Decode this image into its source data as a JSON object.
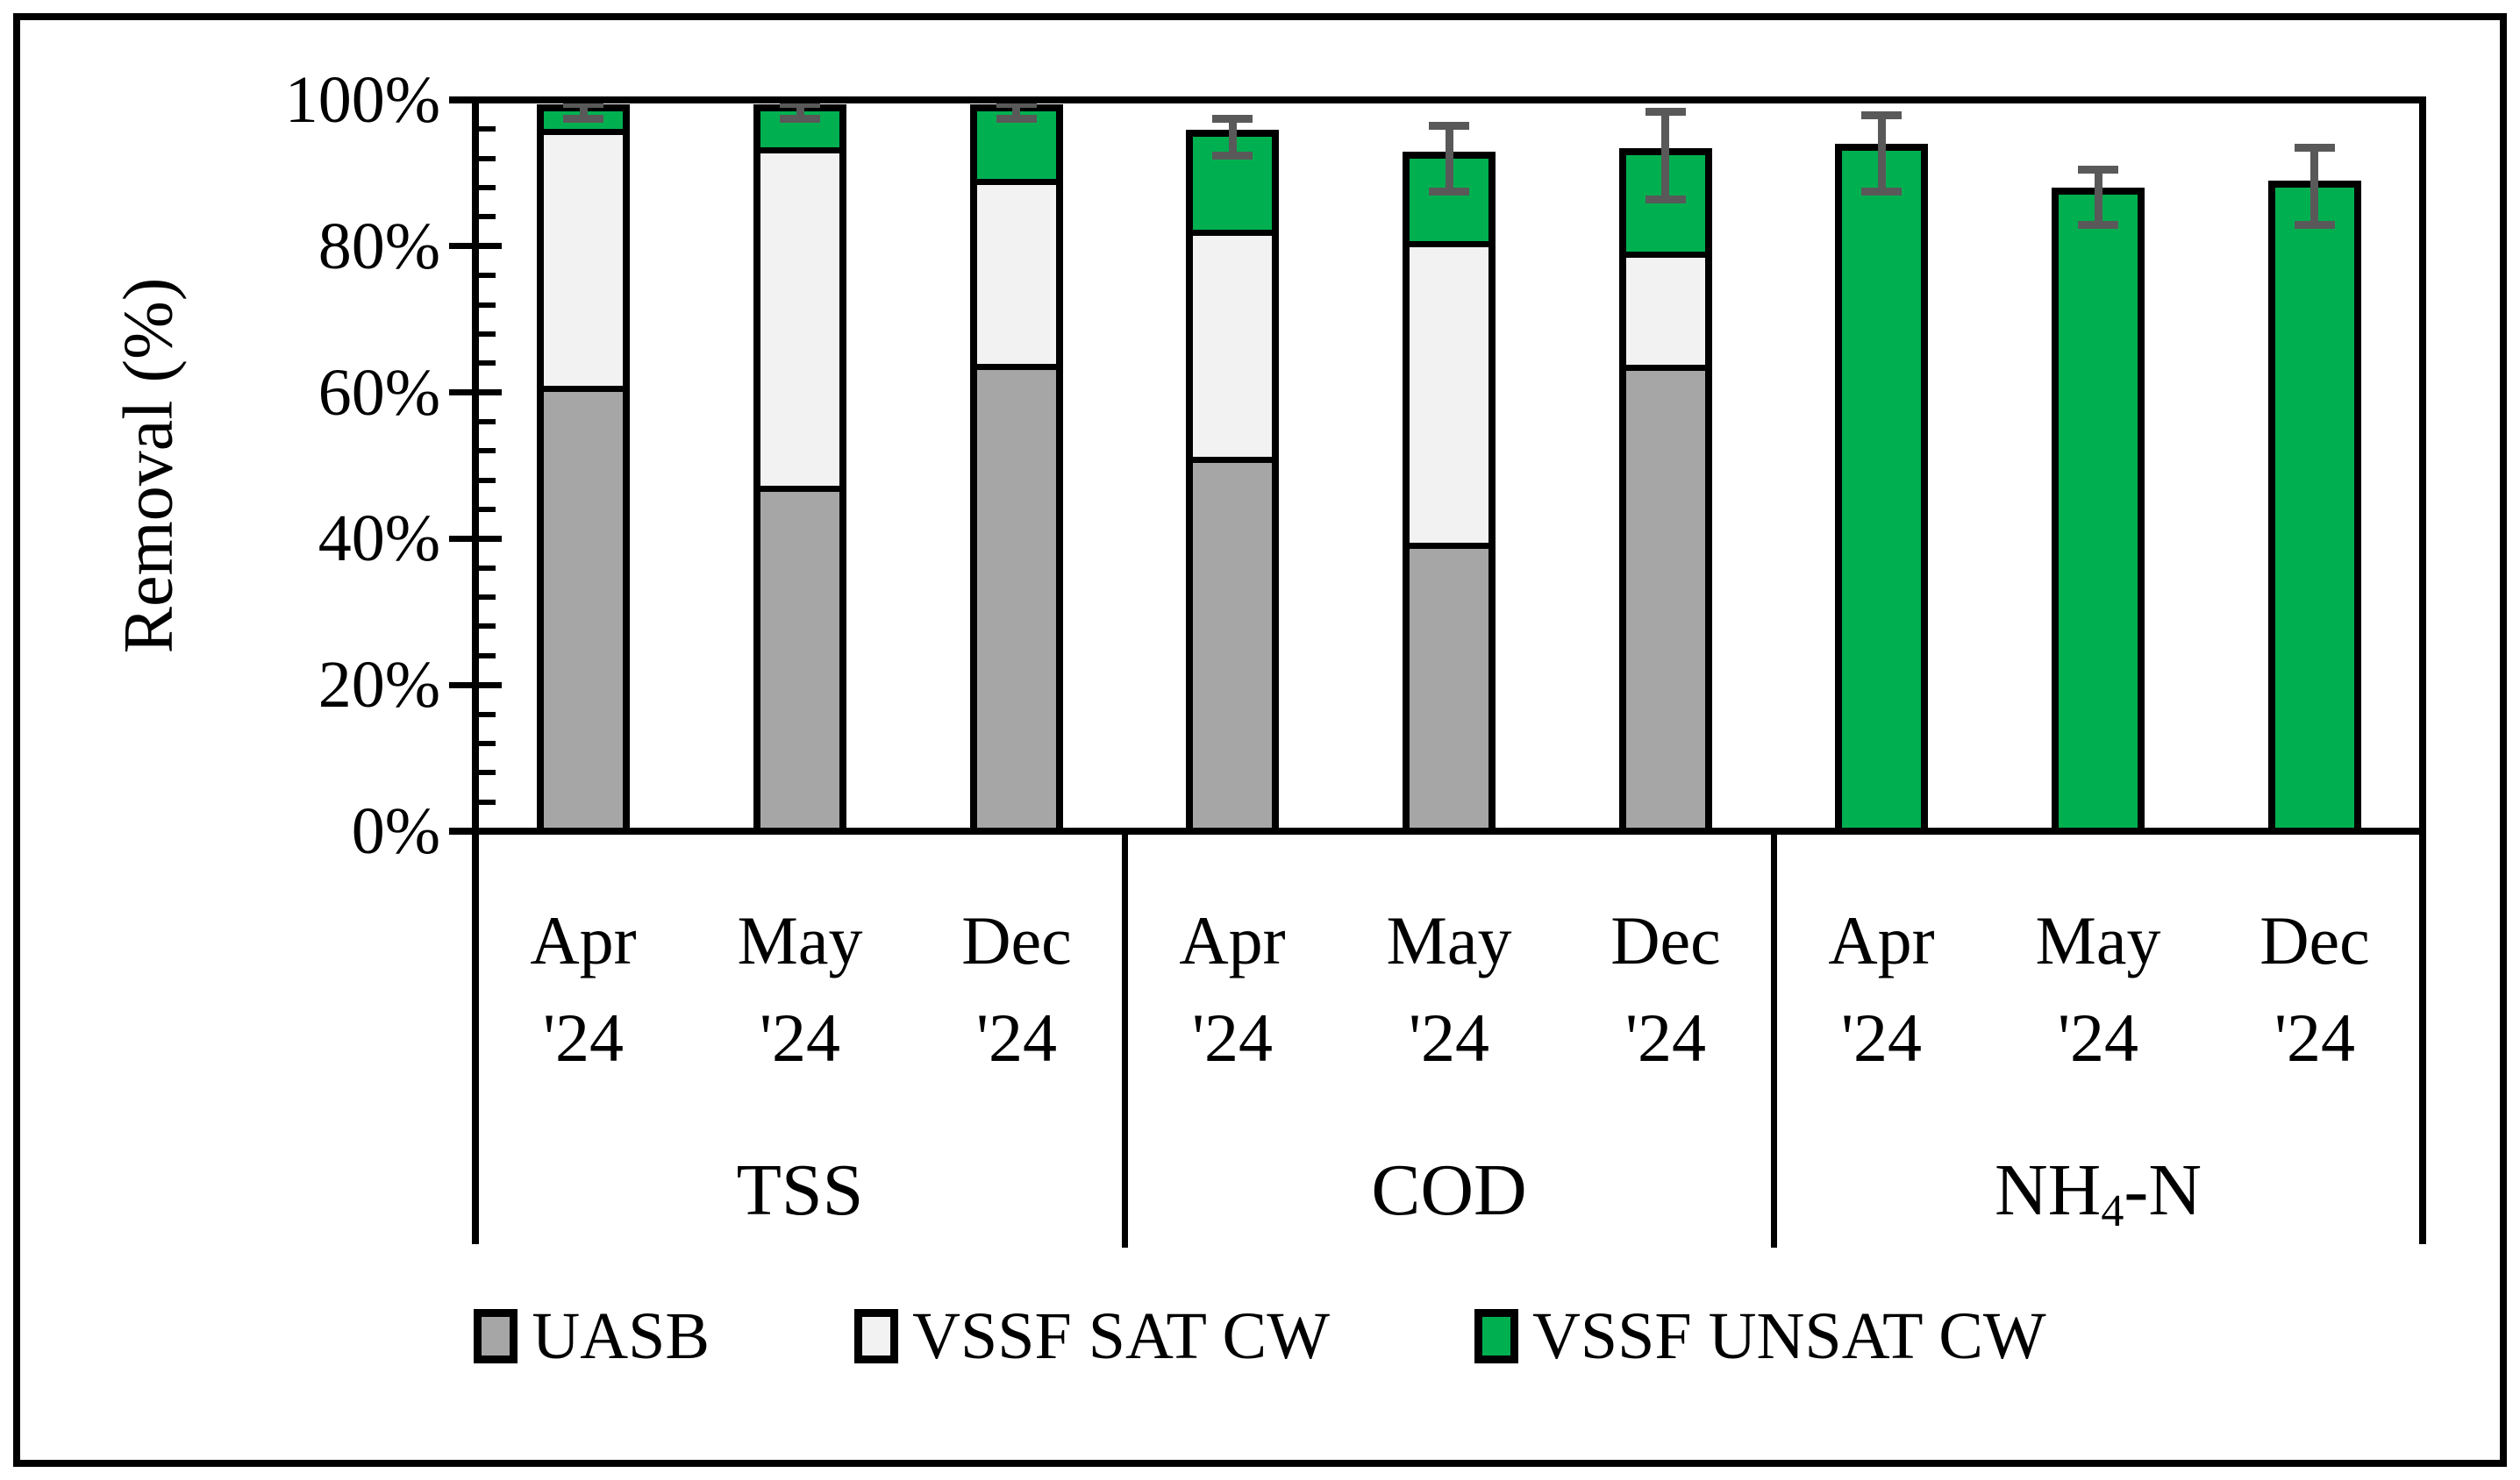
{
  "figure": {
    "background": "#FFFFFF",
    "frame_color": "#000000"
  },
  "colors": {
    "uasb": "#A6A6A6",
    "vssf_sat": "#F2F2F2",
    "vssf_unsat": "#00B050",
    "error_bar": "#595959",
    "axis_line": "#000000"
  },
  "y_axis": {
    "title": "Removal (%)",
    "tick_values": [
      0,
      20,
      40,
      60,
      80,
      100
    ],
    "tick_labels": [
      "0%",
      "20%",
      "40%",
      "60%",
      "80%",
      "100%"
    ],
    "minor_tick_step": 4,
    "range": [
      0,
      100
    ]
  },
  "legend": {
    "items": [
      {
        "label": "UASB",
        "color": "#A6A6A6"
      },
      {
        "label": "VSSF SAT CW",
        "color": "#F2F2F2"
      },
      {
        "label": "VSSF UNSAT CW",
        "color": "#00B050"
      }
    ]
  },
  "chart_data": {
    "type": "bar",
    "stacked": true,
    "percent": true,
    "title": "",
    "xlabel": "",
    "ylabel": "Removal (%)",
    "ylim": [
      0,
      100
    ],
    "grid": false,
    "legend_position": "bottom",
    "series_names": [
      "UASB",
      "VSSF SAT CW",
      "VSSF UNSAT CW"
    ],
    "groups": [
      {
        "label": "TSS",
        "label_pre": "TSS",
        "label_sub": "",
        "label_post": "",
        "bars": [
          {
            "month": "Apr",
            "year": "'24",
            "segments": {
              "UASB": 61,
              "VSSF SAT CW": 35,
              "VSSF UNSAT CW": 2.5
            },
            "total": 98.5,
            "err_low": 97.5,
            "err_high": 99.5
          },
          {
            "month": "May",
            "year": "'24",
            "segments": {
              "UASB": 47,
              "VSSF SAT CW": 46.5,
              "VSSF UNSAT CW": 5
            },
            "total": 98.5,
            "err_low": 97.5,
            "err_high": 99.5
          },
          {
            "month": "Dec",
            "year": "'24",
            "segments": {
              "UASB": 64,
              "VSSF SAT CW": 25,
              "VSSF UNSAT CW": 9.5
            },
            "total": 98.5,
            "err_low": 97.5,
            "err_high": 99.5
          }
        ]
      },
      {
        "label": "COD",
        "label_pre": "COD",
        "label_sub": "",
        "label_post": "",
        "bars": [
          {
            "month": "Apr",
            "year": "'24",
            "segments": {
              "UASB": 51,
              "VSSF SAT CW": 31,
              "VSSF UNSAT CW": 13
            },
            "total": 95,
            "err_low": 92.5,
            "err_high": 97.5
          },
          {
            "month": "May",
            "year": "'24",
            "segments": {
              "UASB": 39,
              "VSSF SAT CW": 41.5,
              "VSSF UNSAT CW": 11.5
            },
            "total": 92,
            "err_low": 87.5,
            "err_high": 96.5
          },
          {
            "month": "Dec",
            "year": "'24",
            "segments": {
              "UASB": 64,
              "VSSF SAT CW": 15,
              "VSSF UNSAT CW": 13.5
            },
            "total": 92.5,
            "err_low": 86.5,
            "err_high": 98.5
          }
        ]
      },
      {
        "label": "NH4-N",
        "label_pre": "NH",
        "label_sub": "4",
        "label_post": "-N",
        "bars": [
          {
            "month": "Apr",
            "year": "'24",
            "segments": {
              "UASB": 0,
              "VSSF SAT CW": 0,
              "VSSF UNSAT CW": 93
            },
            "total": 93,
            "err_low": 87.5,
            "err_high": 98
          },
          {
            "month": "May",
            "year": "'24",
            "segments": {
              "UASB": 0,
              "VSSF SAT CW": 0,
              "VSSF UNSAT CW": 87
            },
            "total": 87,
            "err_low": 83,
            "err_high": 90.5
          },
          {
            "month": "Dec",
            "year": "'24",
            "segments": {
              "UASB": 0,
              "VSSF SAT CW": 0,
              "VSSF UNSAT CW": 88
            },
            "total": 88,
            "err_low": 83,
            "err_high": 93.5
          }
        ]
      }
    ]
  }
}
